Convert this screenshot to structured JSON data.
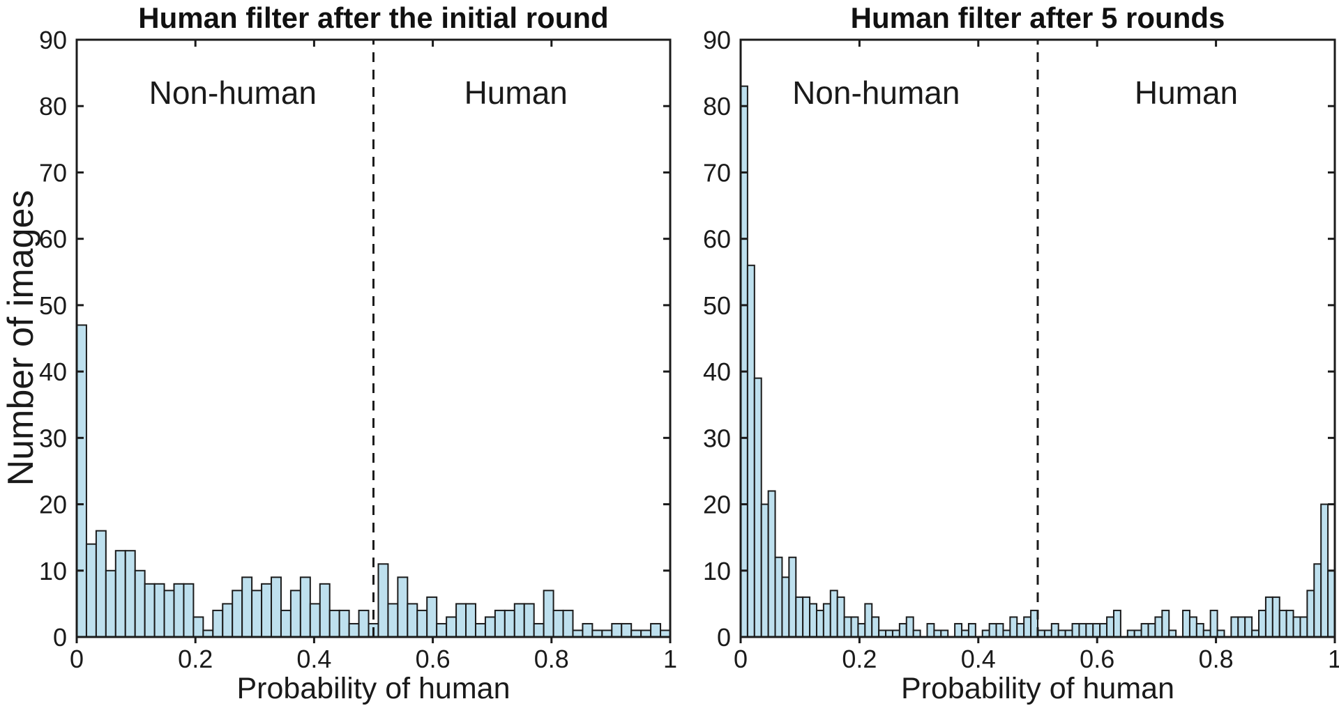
{
  "figure": {
    "background": "#ffffff",
    "bar_fill": "#bee0ee",
    "bar_edge": "#1b1b1b",
    "axis_color": "#1b1b1b",
    "text_color": "#1a1a1a"
  },
  "chart_data": [
    {
      "type": "histogram",
      "title": "Human filter after the initial round",
      "xlabel": "Probability of human",
      "ylabel": "Number of images",
      "xlim": [
        0,
        1
      ],
      "ylim": [
        0,
        90
      ],
      "xticks": [
        0,
        0.2,
        0.4,
        0.6,
        0.8,
        1
      ],
      "xtick_labels": [
        "0",
        "0.2",
        "0.4",
        "0.6",
        "0.8",
        "1"
      ],
      "yticks": [
        0,
        10,
        20,
        30,
        40,
        50,
        60,
        70,
        80,
        90
      ],
      "grid": false,
      "bin_count": 61,
      "bin_width": 0.0164,
      "counts": [
        47,
        14,
        16,
        10,
        13,
        13,
        10,
        8,
        8,
        7,
        8,
        8,
        3,
        1,
        4,
        5,
        7,
        9,
        7,
        8,
        9,
        4,
        7,
        9,
        5,
        8,
        4,
        4,
        2,
        4,
        2,
        11,
        5,
        9,
        5,
        4,
        6,
        2,
        3,
        5,
        5,
        2,
        3,
        4,
        4,
        5,
        5,
        2,
        7,
        4,
        4,
        1,
        2,
        1,
        1,
        2,
        2,
        1,
        1,
        2,
        1
      ],
      "divider_x": 0.5,
      "divider_style": "dashed",
      "annotations": [
        {
          "text": "Non-human",
          "x": 0.263,
          "y": 82
        },
        {
          "text": "Human",
          "x": 0.74,
          "y": 82
        }
      ]
    },
    {
      "type": "histogram",
      "title": "Human filter after 5 rounds",
      "xlabel": "Probability of human",
      "ylabel": "",
      "xlim": [
        0,
        1
      ],
      "ylim": [
        0,
        90
      ],
      "xticks": [
        0,
        0.2,
        0.4,
        0.6,
        0.8,
        1
      ],
      "xtick_labels": [
        "0",
        "0.2",
        "0.4",
        "0.6",
        "0.8",
        "1"
      ],
      "yticks": [
        0,
        10,
        20,
        30,
        40,
        50,
        60,
        70,
        80,
        90
      ],
      "grid": false,
      "bin_count": 86,
      "bin_width": 0.0116,
      "counts": [
        83,
        56,
        39,
        20,
        22,
        12,
        9,
        12,
        6,
        6,
        5,
        4,
        5,
        7,
        6,
        3,
        3,
        2,
        5,
        3,
        1,
        1,
        1,
        2,
        3,
        1,
        0,
        2,
        1,
        1,
        0,
        2,
        1,
        2,
        0,
        1,
        2,
        2,
        1,
        3,
        2,
        3,
        4,
        1,
        1,
        2,
        1,
        1,
        2,
        2,
        2,
        2,
        2,
        3,
        4,
        0,
        1,
        1,
        2,
        2,
        3,
        4,
        1,
        0,
        4,
        3,
        2,
        1,
        4,
        1,
        0,
        3,
        3,
        3,
        1,
        4,
        6,
        6,
        4,
        4,
        3,
        3,
        7,
        11,
        20,
        10
      ],
      "divider_x": 0.5,
      "divider_style": "dashed",
      "annotations": [
        {
          "text": "Non-human",
          "x": 0.228,
          "y": 82
        },
        {
          "text": "Human",
          "x": 0.75,
          "y": 82
        }
      ]
    }
  ]
}
